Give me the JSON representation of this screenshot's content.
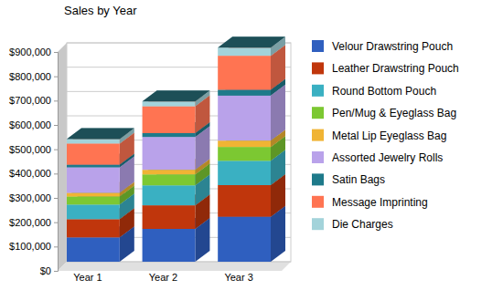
{
  "chart_data": {
    "type": "bar",
    "stacked": true,
    "title": "Sales by Year",
    "categories": [
      "Year 1",
      "Year 2",
      "Year 3"
    ],
    "series": [
      {
        "name": "Velour Drawstring Pouch",
        "color": "#2f5fbf",
        "values": [
          100000,
          135000,
          185000
        ]
      },
      {
        "name": "Leather Drawstring Pouch",
        "color": "#c0360c",
        "values": [
          75000,
          97000,
          130000
        ]
      },
      {
        "name": "Round Bottom Pouch",
        "color": "#3ab0c2",
        "values": [
          60000,
          82000,
          100000
        ]
      },
      {
        "name": "Pen/Mug & Eyeglass Bag",
        "color": "#7cc832",
        "values": [
          33000,
          45000,
          57000
        ]
      },
      {
        "name": "Metal Lip Eyeglass Bag",
        "color": "#f0b434",
        "values": [
          15000,
          19000,
          26000
        ]
      },
      {
        "name": "Assorted Jewelry Rolls",
        "color": "#b9a2ea",
        "values": [
          105000,
          135000,
          185000
        ]
      },
      {
        "name": "Satin Bags",
        "color": "#1e7a8a",
        "values": [
          11000,
          16000,
          24000
        ]
      },
      {
        "name": "Message Imprinting",
        "color": "#ff7452",
        "values": [
          87000,
          110000,
          140000
        ]
      },
      {
        "name": "Die Charges",
        "color": "#a3d3da",
        "values": [
          18000,
          20000,
          33000
        ]
      }
    ],
    "ylim": [
      0,
      900000
    ],
    "yticks": [
      {
        "value": 0,
        "label": "$0"
      },
      {
        "value": 100000,
        "label": "$100,000"
      },
      {
        "value": 200000,
        "label": "$200,000"
      },
      {
        "value": 300000,
        "label": "$300,000"
      },
      {
        "value": 400000,
        "label": "$400,000"
      },
      {
        "value": 500000,
        "label": "$500,000"
      },
      {
        "value": 600000,
        "label": "$600,000"
      },
      {
        "value": 700000,
        "label": "$700,000"
      },
      {
        "value": 800000,
        "label": "$800,000"
      },
      {
        "value": 900000,
        "label": "$900,000"
      }
    ],
    "grid": true,
    "legend": "right"
  }
}
